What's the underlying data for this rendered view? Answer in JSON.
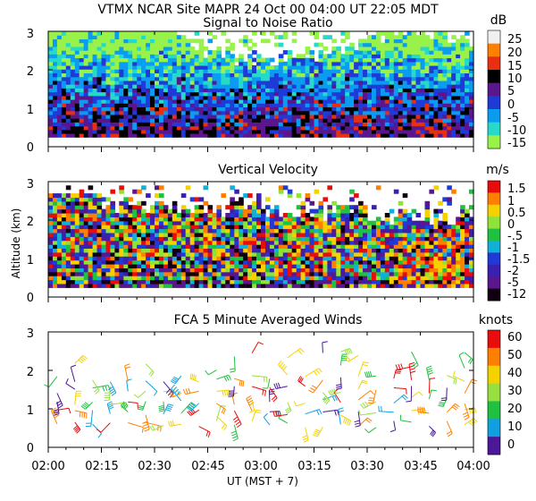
{
  "header": {
    "line1": "VTMX   NCAR Site   MAPR 24 Oct 00   04:00 UT   22:05   MDT"
  },
  "chart_data": {
    "type": "heatmap",
    "x_axis": {
      "label": "UT   (MST + 7)",
      "range": [
        0,
        120
      ],
      "range_desc": [
        "02:00",
        "04:00"
      ],
      "ticks": [
        0,
        15,
        30,
        45,
        60,
        75,
        90,
        105,
        120
      ],
      "tick_labels": [
        "02:00",
        "02:15",
        "02:30",
        "02:45",
        "03:00",
        "03:15",
        "03:30",
        "03:45",
        "04:00"
      ]
    },
    "y_label": "Altitude (km)",
    "panels": [
      {
        "id": "snr",
        "title": "Signal to Noise Ratio",
        "unit": "dB",
        "ylim": [
          0,
          3
        ],
        "yticks": [
          "0",
          "1",
          "2",
          "3"
        ],
        "colorbar": [
          {
            "label": "25",
            "color": "#f0f0f0"
          },
          {
            "label": "20",
            "color": "#ff7f00"
          },
          {
            "label": "15",
            "color": "#e83010"
          },
          {
            "label": "10",
            "color": "#000000"
          },
          {
            "label": "5",
            "color": "#5a168c"
          },
          {
            "label": "0",
            "color": "#1f3ad6"
          },
          {
            "label": "-5",
            "color": "#0a9cf0"
          },
          {
            "label": "-10",
            "color": "#26d9c8"
          },
          {
            "label": "-15",
            "color": "#98f24a"
          }
        ]
      },
      {
        "id": "vv",
        "title": "Vertical Velocity",
        "unit": "m/s",
        "ylim": [
          0,
          3
        ],
        "yticks": [
          "0",
          "1",
          "2",
          "3"
        ],
        "colorbar": [
          {
            "label": "1.5",
            "color": "#e80c0c"
          },
          {
            "label": "1",
            "color": "#ff7f00"
          },
          {
            "label": "0.5",
            "color": "#f4d200"
          },
          {
            "label": "0",
            "color": "#8fe23a"
          },
          {
            "label": "-.5",
            "color": "#20c040"
          },
          {
            "label": "-1",
            "color": "#10b0d8"
          },
          {
            "label": "-1.5",
            "color": "#1f3ad6"
          },
          {
            "label": "-2",
            "color": "#3a20b0"
          },
          {
            "label": "-5",
            "color": "#5a168c"
          },
          {
            "label": "-12",
            "color": "#120010"
          }
        ]
      },
      {
        "id": "winds",
        "title": "FCA 5 Minute Averaged Winds",
        "unit": "knots",
        "ylim": [
          0,
          3
        ],
        "yticks": [
          "0",
          "1",
          "2",
          "3"
        ],
        "colorbar": [
          {
            "label": "60",
            "color": "#e80c0c"
          },
          {
            "label": "50",
            "color": "#ff7f00"
          },
          {
            "label": "40",
            "color": "#f4d200"
          },
          {
            "label": "30",
            "color": "#98e040"
          },
          {
            "label": "20",
            "color": "#20c040"
          },
          {
            "label": "10",
            "color": "#10a0e0"
          },
          {
            "label": "0",
            "color": "#4a1898"
          }
        ],
        "barb_times": [
          0,
          5,
          10,
          15,
          20,
          25,
          30,
          35,
          40,
          45,
          50,
          55,
          60,
          65,
          70,
          75,
          80,
          85,
          90,
          95,
          100,
          105,
          110,
          115
        ],
        "barb_heights_km": [
          0.6,
          0.9,
          1.2,
          1.5,
          1.8,
          2.1,
          2.4
        ]
      }
    ]
  }
}
